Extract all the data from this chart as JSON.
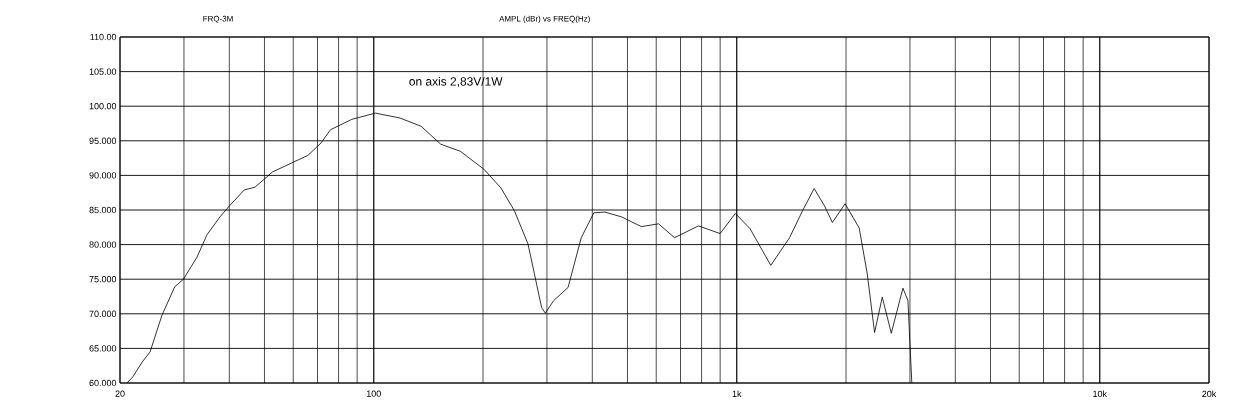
{
  "chart_data": {
    "type": "line",
    "title": "AMPL (dBr)   vs   FREQ(Hz)",
    "subtitle": "FRQ-3M",
    "annotations": [
      "on axis 2,83V/1W"
    ],
    "log": "x",
    "grid": true,
    "xlim": [
      20,
      20000
    ],
    "ylim": [
      60,
      110
    ],
    "xticks": [
      20,
      100,
      {
        "value": 1000,
        "label": "1k"
      },
      {
        "value": 10000,
        "label": "10k"
      },
      {
        "value": 20000,
        "label": "20k"
      }
    ],
    "yticks": [
      {
        "value": 60,
        "label": "60.000"
      },
      {
        "value": 65,
        "label": "65.000"
      },
      {
        "value": 70,
        "label": "70.000"
      },
      {
        "value": 75,
        "label": "75.000"
      },
      {
        "value": 80,
        "label": "80.000"
      },
      {
        "value": 85,
        "label": "85.000"
      },
      {
        "value": 90,
        "label": "90.000"
      },
      {
        "value": 95,
        "label": "95.000"
      },
      {
        "value": 100,
        "label": "100.00"
      },
      {
        "value": 105,
        "label": "105.00"
      },
      {
        "value": 110,
        "label": "110.00"
      }
    ],
    "series": [
      {
        "color": "#000000",
        "x": [
          20.9,
          21.7,
          23.0,
          24.2,
          26.1,
          28.3,
          29.9,
          32.6,
          34.7,
          37.7,
          40.2,
          44.0,
          47.1,
          52.6,
          60.0,
          65.9,
          71.6,
          76,
          87,
          101,
          118,
          135,
          153,
          173,
          201,
          224,
          244,
          266,
          277,
          290,
          297,
          313,
          343,
          373,
          404,
          433,
          482,
          546,
          609,
          674,
          784,
          900,
          991,
          1088,
          1241,
          1398,
          1518,
          1634,
          1745,
          1834,
          1989,
          2174,
          2288,
          2397,
          2517,
          2665,
          2870,
          2962,
          3036
        ],
        "values": [
          60.0,
          60.9,
          63.0,
          64.5,
          69.8,
          73.9,
          75.0,
          78.2,
          81.4,
          84.0,
          85.7,
          87.9,
          88.3,
          90.5,
          91.9,
          92.9,
          94.7,
          96.6,
          98.1,
          99.0,
          98.3,
          97.1,
          94.5,
          93.5,
          90.9,
          88.2,
          84.9,
          80.1,
          75.8,
          70.9,
          70.1,
          71.9,
          73.8,
          81.0,
          84.6,
          84.7,
          84.0,
          82.6,
          83.0,
          81.0,
          82.7,
          81.6,
          84.5,
          82.3,
          77.0,
          81.0,
          84.9,
          88.1,
          85.6,
          83.2,
          85.9,
          82.4,
          75.8,
          67.3,
          72.4,
          67.2,
          73.7,
          71.9,
          60.0
        ]
      }
    ]
  }
}
